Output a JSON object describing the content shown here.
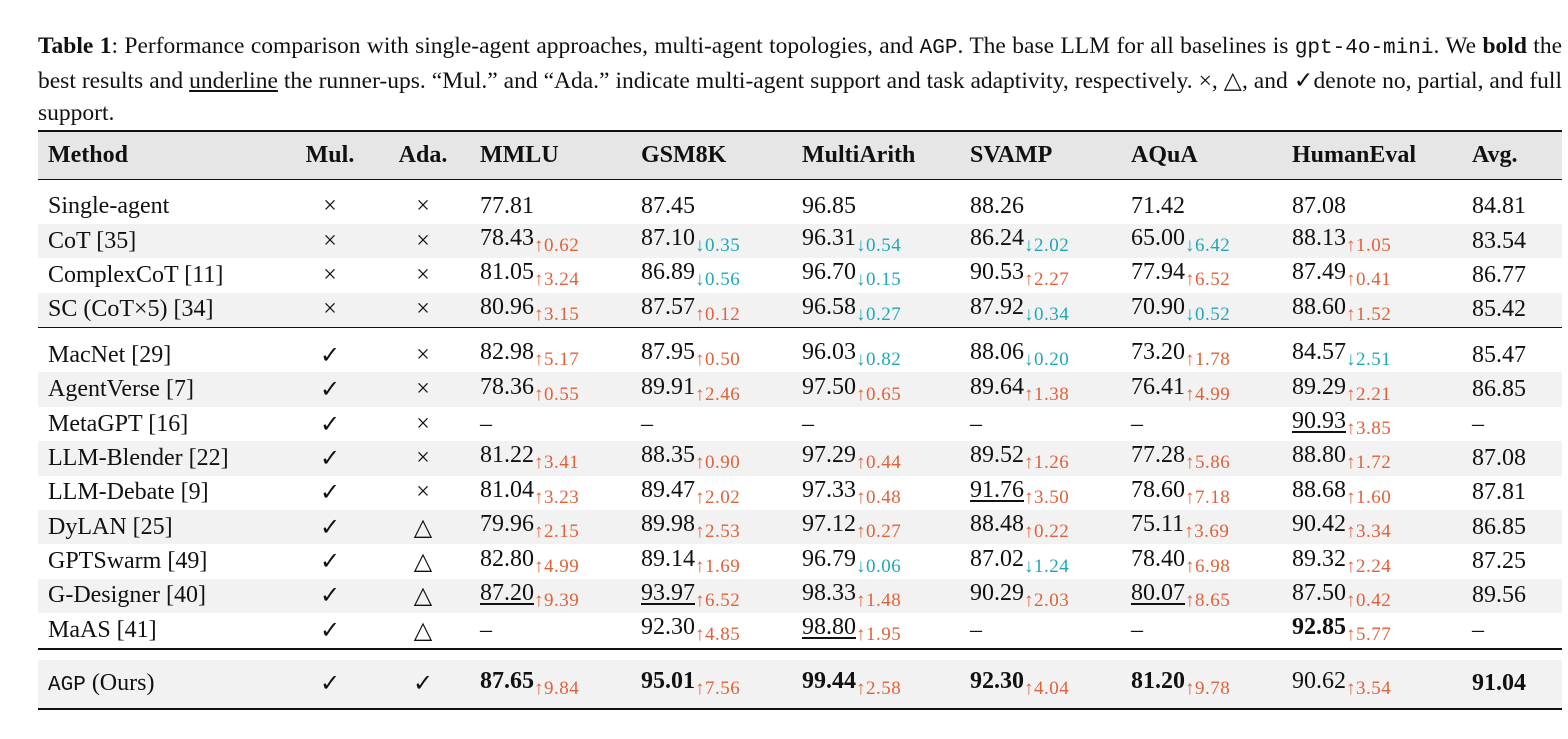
{
  "caption": {
    "label": "Table 1",
    "part1": ": Performance comparison with single-agent approaches, multi-agent topologies, and ",
    "agp": "AGP",
    "part2": ". The base LLM for all baselines is ",
    "model": "gpt-4o-mini",
    "part3": ". We ",
    "bold_word": "bold",
    "part4": " the best results and ",
    "underline_word": "underline",
    "part5": " the runner-ups. “Mul.” and “Ada.” indicate multi-agent support and task adaptivity, respectively. ×, △, and ✓denote no, partial, and full support."
  },
  "table": {
    "headers": [
      "Method",
      "Mul.",
      "Ada.",
      "MMLU",
      "GSM8K",
      "MultiArith",
      "SVAMP",
      "AQuA",
      "HumanEval",
      "Avg."
    ],
    "group1": [
      {
        "method": "Single-agent",
        "mul": "×",
        "ada": "×",
        "cells": [
          {
            "v": "77.81"
          },
          {
            "v": "87.45"
          },
          {
            "v": "96.85"
          },
          {
            "v": "88.26"
          },
          {
            "v": "71.42"
          },
          {
            "v": "87.08"
          }
        ],
        "avg": "84.81",
        "shade": false
      },
      {
        "method": "CoT [35]",
        "mul": "×",
        "ada": "×",
        "cells": [
          {
            "v": "78.43",
            "d": "↑0.62",
            "dir": "up"
          },
          {
            "v": "87.10",
            "d": "↓0.35",
            "dir": "down"
          },
          {
            "v": "96.31",
            "d": "↓0.54",
            "dir": "down"
          },
          {
            "v": "86.24",
            "d": "↓2.02",
            "dir": "down"
          },
          {
            "v": "65.00",
            "d": "↓6.42",
            "dir": "down"
          },
          {
            "v": "88.13",
            "d": "↑1.05",
            "dir": "up"
          }
        ],
        "avg": "83.54",
        "shade": true
      },
      {
        "method": "ComplexCoT [11]",
        "mul": "×",
        "ada": "×",
        "cells": [
          {
            "v": "81.05",
            "d": "↑3.24",
            "dir": "up"
          },
          {
            "v": "86.89",
            "d": "↓0.56",
            "dir": "down"
          },
          {
            "v": "96.70",
            "d": "↓0.15",
            "dir": "down"
          },
          {
            "v": "90.53",
            "d": "↑2.27",
            "dir": "up"
          },
          {
            "v": "77.94",
            "d": "↑6.52",
            "dir": "up"
          },
          {
            "v": "87.49",
            "d": "↑0.41",
            "dir": "up"
          }
        ],
        "avg": "86.77",
        "shade": false
      },
      {
        "method": "SC (CoT×5) [34]",
        "mul": "×",
        "ada": "×",
        "cells": [
          {
            "v": "80.96",
            "d": "↑3.15",
            "dir": "up"
          },
          {
            "v": "87.57",
            "d": "↑0.12",
            "dir": "up"
          },
          {
            "v": "96.58",
            "d": "↓0.27",
            "dir": "down"
          },
          {
            "v": "87.92",
            "d": "↓0.34",
            "dir": "down"
          },
          {
            "v": "70.90",
            "d": "↓0.52",
            "dir": "down"
          },
          {
            "v": "88.60",
            "d": "↑1.52",
            "dir": "up"
          }
        ],
        "avg": "85.42",
        "shade": true
      }
    ],
    "group2": [
      {
        "method": "MacNet [29]",
        "mul": "✓",
        "ada": "×",
        "cells": [
          {
            "v": "82.98",
            "d": "↑5.17",
            "dir": "up"
          },
          {
            "v": "87.95",
            "d": "↑0.50",
            "dir": "up"
          },
          {
            "v": "96.03",
            "d": "↓0.82",
            "dir": "down"
          },
          {
            "v": "88.06",
            "d": "↓0.20",
            "dir": "down"
          },
          {
            "v": "73.20",
            "d": "↑1.78",
            "dir": "up"
          },
          {
            "v": "84.57",
            "d": "↓2.51",
            "dir": "down"
          }
        ],
        "avg": "85.47",
        "shade": false
      },
      {
        "method": "AgentVerse [7]",
        "mul": "✓",
        "ada": "×",
        "cells": [
          {
            "v": "78.36",
            "d": "↑0.55",
            "dir": "up"
          },
          {
            "v": "89.91",
            "d": "↑2.46",
            "dir": "up"
          },
          {
            "v": "97.50",
            "d": "↑0.65",
            "dir": "up"
          },
          {
            "v": "89.64",
            "d": "↑1.38",
            "dir": "up"
          },
          {
            "v": "76.41",
            "d": "↑4.99",
            "dir": "up"
          },
          {
            "v": "89.29",
            "d": "↑2.21",
            "dir": "up"
          }
        ],
        "avg": "86.85",
        "shade": true
      },
      {
        "method": "MetaGPT [16]",
        "mul": "✓",
        "ada": "×",
        "cells": [
          {
            "v": "–"
          },
          {
            "v": "–"
          },
          {
            "v": "–"
          },
          {
            "v": "–"
          },
          {
            "v": "–"
          },
          {
            "v": "90.93",
            "d": "↑3.85",
            "dir": "up",
            "ul": true
          }
        ],
        "avg": "–",
        "shade": false
      },
      {
        "method": "LLM-Blender [22]",
        "mul": "✓",
        "ada": "×",
        "cells": [
          {
            "v": "81.22",
            "d": "↑3.41",
            "dir": "up"
          },
          {
            "v": "88.35",
            "d": "↑0.90",
            "dir": "up"
          },
          {
            "v": "97.29",
            "d": "↑0.44",
            "dir": "up"
          },
          {
            "v": "89.52",
            "d": "↑1.26",
            "dir": "up"
          },
          {
            "v": "77.28",
            "d": "↑5.86",
            "dir": "up"
          },
          {
            "v": "88.80",
            "d": "↑1.72",
            "dir": "up"
          }
        ],
        "avg": "87.08",
        "shade": true
      },
      {
        "method": "LLM-Debate [9]",
        "mul": "✓",
        "ada": "×",
        "cells": [
          {
            "v": "81.04",
            "d": "↑3.23",
            "dir": "up"
          },
          {
            "v": "89.47",
            "d": "↑2.02",
            "dir": "up"
          },
          {
            "v": "97.33",
            "d": "↑0.48",
            "dir": "up"
          },
          {
            "v": "91.76",
            "d": "↑3.50",
            "dir": "up",
            "ul": true
          },
          {
            "v": "78.60",
            "d": "↑7.18",
            "dir": "up"
          },
          {
            "v": "88.68",
            "d": "↑1.60",
            "dir": "up"
          }
        ],
        "avg": "87.81",
        "shade": false
      },
      {
        "method": "DyLAN [25]",
        "mul": "✓",
        "ada": "△",
        "cells": [
          {
            "v": "79.96",
            "d": "↑2.15",
            "dir": "up"
          },
          {
            "v": "89.98",
            "d": "↑2.53",
            "dir": "up"
          },
          {
            "v": "97.12",
            "d": "↑0.27",
            "dir": "up"
          },
          {
            "v": "88.48",
            "d": "↑0.22",
            "dir": "up"
          },
          {
            "v": "75.11",
            "d": "↑3.69",
            "dir": "up"
          },
          {
            "v": "90.42",
            "d": "↑3.34",
            "dir": "up"
          }
        ],
        "avg": "86.85",
        "shade": true
      },
      {
        "method": "GPTSwarm [49]",
        "mul": "✓",
        "ada": "△",
        "cells": [
          {
            "v": "82.80",
            "d": "↑4.99",
            "dir": "up"
          },
          {
            "v": "89.14",
            "d": "↑1.69",
            "dir": "up"
          },
          {
            "v": "96.79",
            "d": "↓0.06",
            "dir": "down"
          },
          {
            "v": "87.02",
            "d": "↓1.24",
            "dir": "down"
          },
          {
            "v": "78.40",
            "d": "↑6.98",
            "dir": "up"
          },
          {
            "v": "89.32",
            "d": "↑2.24",
            "dir": "up"
          }
        ],
        "avg": "87.25",
        "shade": false
      },
      {
        "method": "G-Designer [40]",
        "mul": "✓",
        "ada": "△",
        "cells": [
          {
            "v": "87.20",
            "d": "↑9.39",
            "dir": "up",
            "ul": true
          },
          {
            "v": "93.97",
            "d": "↑6.52",
            "dir": "up",
            "ul": true
          },
          {
            "v": "98.33",
            "d": "↑1.48",
            "dir": "up"
          },
          {
            "v": "90.29",
            "d": "↑2.03",
            "dir": "up"
          },
          {
            "v": "80.07",
            "d": "↑8.65",
            "dir": "up",
            "ul": true
          },
          {
            "v": "87.50",
            "d": "↑0.42",
            "dir": "up"
          }
        ],
        "avg": "89.56",
        "shade": true
      },
      {
        "method": "MaAS [41]",
        "mul": "✓",
        "ada": "△",
        "cells": [
          {
            "v": "–"
          },
          {
            "v": "92.30",
            "d": "↑4.85",
            "dir": "up"
          },
          {
            "v": "98.80",
            "d": "↑1.95",
            "dir": "up",
            "ul": true
          },
          {
            "v": "–"
          },
          {
            "v": "–"
          },
          {
            "v": "92.85",
            "d": "↑5.77",
            "dir": "up",
            "bold": true
          }
        ],
        "avg": "–",
        "shade": false
      }
    ],
    "ours": {
      "method_code": "AGP",
      "method_suffix": " (Ours)",
      "mul": "✓",
      "ada": "✓",
      "cells": [
        {
          "v": "87.65",
          "d": "↑9.84",
          "dir": "up",
          "bold": true
        },
        {
          "v": "95.01",
          "d": "↑7.56",
          "dir": "up",
          "bold": true
        },
        {
          "v": "99.44",
          "d": "↑2.58",
          "dir": "up",
          "bold": true
        },
        {
          "v": "92.30",
          "d": "↑4.04",
          "dir": "up",
          "bold": true
        },
        {
          "v": "81.20",
          "d": "↑9.78",
          "dir": "up",
          "bold": true
        },
        {
          "v": "90.62",
          "d": "↑3.54",
          "dir": "up"
        }
      ],
      "avg": "91.04",
      "avg_bold": true
    },
    "colors": {
      "up": "#e0623a",
      "down": "#1fa8b8",
      "header_bg": "#e6e6e6",
      "shade_bg": "#f2f2f2"
    }
  }
}
